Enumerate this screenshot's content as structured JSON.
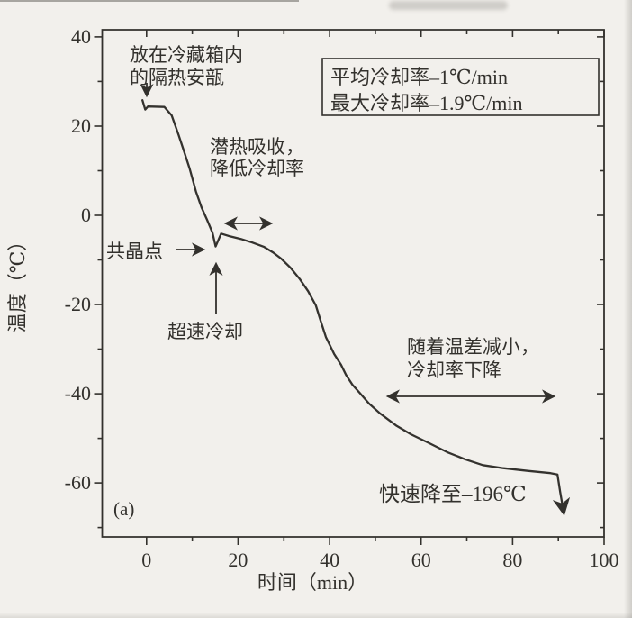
{
  "colors": {
    "ink": "#33312d",
    "curve": "#34322e",
    "paper": "#f2f0ec"
  },
  "chart_data": {
    "type": "line",
    "title": "",
    "xlabel": "时间（min）",
    "ylabel": "温度（℃）",
    "panel_label": "(a)",
    "xlim": [
      -9.7,
      100
    ],
    "ylim": [
      -72.1,
      41.6
    ],
    "xticks": [
      0,
      20,
      40,
      60,
      80,
      100
    ],
    "xminorticks": [
      10,
      30,
      50,
      70,
      90
    ],
    "yticks": [
      40,
      20,
      0,
      -20,
      -40,
      -60
    ],
    "yminorticks": [
      30,
      10,
      -10,
      -30,
      -50,
      -70
    ],
    "xtick_labels": [
      "0",
      "20",
      "40",
      "60",
      "80",
      "100"
    ],
    "ytick_labels": [
      "40",
      "20",
      "0",
      "-20",
      "-40",
      "-60"
    ],
    "grid": false,
    "legend": {
      "lines": [
        "平均冷却率–1℃/min",
        "最大冷却率–1.9℃/min"
      ]
    },
    "series": [
      {
        "name": "cooling_curve",
        "points": [
          [
            -0.9,
            25.8
          ],
          [
            -0.3,
            23.7
          ],
          [
            0.3,
            24.4
          ],
          [
            3.9,
            24.3
          ],
          [
            5.5,
            22.4
          ],
          [
            7.0,
            18.0
          ],
          [
            8.1,
            14.6
          ],
          [
            9.4,
            10.5
          ],
          [
            10.8,
            5.3
          ],
          [
            12.0,
            1.8
          ],
          [
            13.3,
            -1.2
          ],
          [
            14.4,
            -3.9
          ],
          [
            15.1,
            -7.0
          ],
          [
            16.3,
            -4.1
          ],
          [
            18.2,
            -4.7
          ],
          [
            20.6,
            -5.3
          ],
          [
            23.1,
            -6.1
          ],
          [
            25.7,
            -7.1
          ],
          [
            27.6,
            -8.3
          ],
          [
            29.4,
            -9.7
          ],
          [
            31.4,
            -11.7
          ],
          [
            33.5,
            -14.3
          ],
          [
            35.3,
            -17.0
          ],
          [
            37.0,
            -20.2
          ],
          [
            38.0,
            -23.5
          ],
          [
            39.2,
            -27.3
          ],
          [
            41.0,
            -31.1
          ],
          [
            42.5,
            -33.5
          ],
          [
            43.6,
            -35.8
          ],
          [
            45.0,
            -38.0
          ],
          [
            46.5,
            -39.7
          ],
          [
            48.6,
            -42.2
          ],
          [
            51.0,
            -44.4
          ],
          [
            54.5,
            -47.1
          ],
          [
            57.8,
            -49.1
          ],
          [
            61.8,
            -51.1
          ],
          [
            65.7,
            -53.1
          ],
          [
            69.6,
            -54.7
          ],
          [
            73.5,
            -56.0
          ],
          [
            78.0,
            -56.7
          ],
          [
            83.3,
            -57.3
          ],
          [
            88.3,
            -57.8
          ],
          [
            89.8,
            -58.1
          ],
          [
            90.4,
            -62.0
          ],
          [
            91.2,
            -66.8
          ]
        ]
      }
    ],
    "annotations": {
      "ampoule": {
        "lines": [
          "放在冷藏箱内",
          "的隔热安瓿"
        ],
        "arrow_points_to": [
          0,
          24
        ]
      },
      "latent_heat": {
        "lines": [
          "潜热吸收，",
          "降低冷却率"
        ],
        "arrow_span_min": [
          17,
          28
        ]
      },
      "eutectic_point": {
        "lines": [
          "共晶点"
        ],
        "arrow_points_to": [
          15,
          -7
        ]
      },
      "flash_cooling": {
        "lines": [
          "超速冷却"
        ],
        "arrow_points_to": [
          15.1,
          -8
        ]
      },
      "temp_difference": {
        "lines": [
          "随着温差减小，",
          "冷却率下降"
        ],
        "arrow_span_min": [
          52.5,
          89.5
        ]
      },
      "plunge": {
        "lines": [
          "快速降至–196℃"
        ]
      }
    }
  }
}
